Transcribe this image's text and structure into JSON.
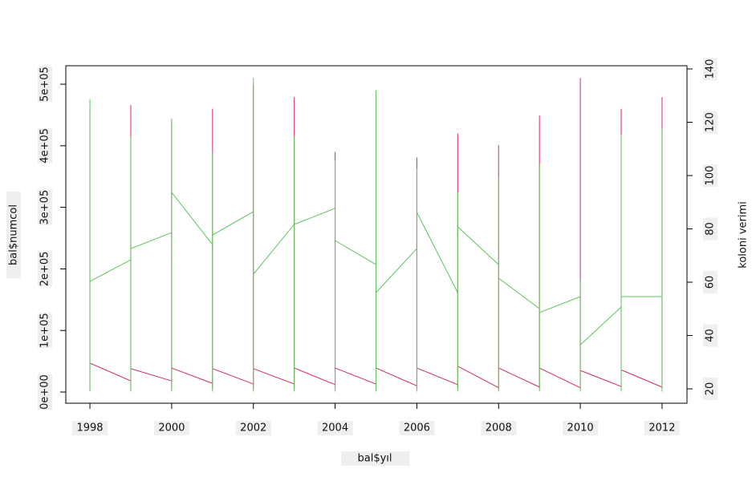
{
  "chart_data": {
    "type": "line",
    "xlabel": "bal$yıl",
    "ylabel": "bal$numcol",
    "y2label": "koloni verimi",
    "x": [
      1998,
      1998,
      1998,
      1999,
      1999,
      1999,
      1999,
      2000,
      2000,
      2000,
      2000,
      2001,
      2001,
      2001,
      2001,
      2002,
      2002,
      2002,
      2002,
      2003,
      2003,
      2003,
      2003,
      2004,
      2004,
      2004,
      2004,
      2005,
      2005,
      2005,
      2005,
      2006,
      2006,
      2006,
      2006,
      2007,
      2007,
      2007,
      2007,
      2008,
      2008,
      2008,
      2008,
      2009,
      2009,
      2009,
      2009,
      2010,
      2010,
      2010,
      2010,
      2011,
      2011,
      2011,
      2011,
      2012,
      2012,
      2012
    ],
    "series": [
      {
        "name": "bal$numcol",
        "color": "#d6295f",
        "values": [
          5000,
          460000,
          47000,
          18000,
          5000,
          466000,
          38000,
          18000,
          5000,
          440000,
          39000,
          14000,
          5000,
          460000,
          38000,
          13000,
          5000,
          500000,
          38000,
          13000,
          5000,
          479000,
          39000,
          12000,
          5000,
          390000,
          39000,
          13000,
          5000,
          420000,
          39000,
          10000,
          5000,
          381000,
          39000,
          12000,
          5000,
          420000,
          42000,
          7000,
          5000,
          401000,
          39000,
          8000,
          5000,
          449000,
          39000,
          7000,
          5000,
          510000,
          35000,
          9000,
          5000,
          460000,
          36000,
          8000,
          5000,
          479000
        ]
      },
      {
        "name": "koloni verimi",
        "color": "#5cc45c",
        "axis": "y2",
        "values": [
          19,
          128.7,
          60.3,
          68.4,
          19,
          114.7,
          72.6,
          78.6,
          19,
          121.4,
          93.7,
          74.1,
          19,
          108.7,
          77.7,
          86.5,
          19,
          136.7,
          63,
          81.7,
          19,
          114.7,
          81.7,
          87.7,
          19,
          105.7,
          75.6,
          66.6,
          19,
          131.9,
          56.1,
          72.6,
          19,
          102.7,
          86.2,
          56.1,
          19,
          93.7,
          80.8,
          66.6,
          19,
          99.7,
          61.5,
          50.1,
          19,
          104.2,
          48.6,
          54.6,
          19,
          60.6,
          36.5,
          50.7,
          19,
          115.3,
          54.6,
          54.6,
          19,
          117.7
        ]
      }
    ],
    "xlim": [
      1997.41,
      2012.61
    ],
    "xticks": [
      1998,
      2000,
      2002,
      2004,
      2006,
      2008,
      2010,
      2012
    ],
    "ylim": [
      -18200,
      530000
    ],
    "yticks": [
      {
        "value": 0,
        "label": "0e+00"
      },
      {
        "value": 100000,
        "label": "1e+05"
      },
      {
        "value": 200000,
        "label": "2e+05"
      },
      {
        "value": 300000,
        "label": "3e+05"
      },
      {
        "value": 400000,
        "label": "4e+05"
      },
      {
        "value": 500000,
        "label": "5e+05"
      }
    ],
    "y2lim": [
      14.6,
      141.2
    ],
    "y2ticks": [
      20,
      40,
      60,
      80,
      100,
      120,
      140
    ]
  }
}
